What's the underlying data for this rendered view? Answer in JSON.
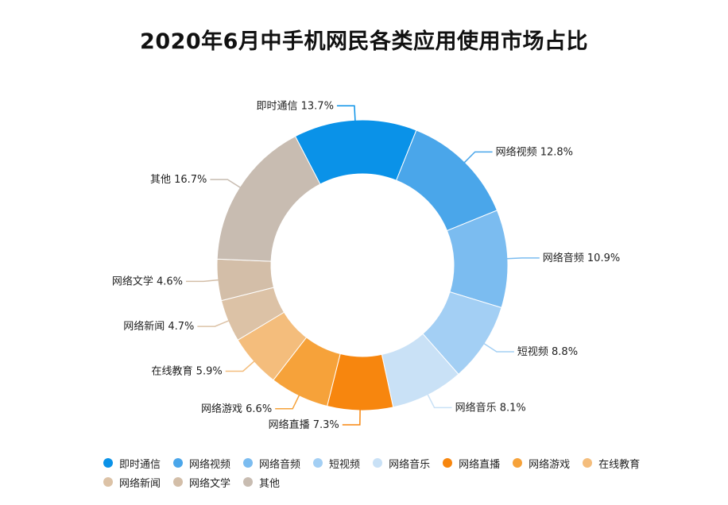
{
  "chart_data": {
    "type": "pie",
    "donut": true,
    "title": "2020年6月中手机网民各类应用使用市场占比",
    "legend_position": "bottom",
    "unit": "%",
    "slices": [
      {
        "label": "即时通信",
        "value": 13.7,
        "color": "#0a92e8"
      },
      {
        "label": "网络视频",
        "value": 12.8,
        "color": "#4aa6ea"
      },
      {
        "label": "网络音频",
        "value": 10.9,
        "color": "#7bbcf0"
      },
      {
        "label": "短视频",
        "value": 8.8,
        "color": "#a3cff4"
      },
      {
        "label": "网络音乐",
        "value": 8.1,
        "color": "#c9e1f6"
      },
      {
        "label": "网络直播",
        "value": 7.3,
        "color": "#f7860e"
      },
      {
        "label": "网络游戏",
        "value": 6.6,
        "color": "#f6a23a"
      },
      {
        "label": "在线教育",
        "value": 5.9,
        "color": "#f4bd7c"
      },
      {
        "label": "网络新闻",
        "value": 4.7,
        "color": "#dcc2a6"
      },
      {
        "label": "网络文学",
        "value": 4.6,
        "color": "#d3bea8"
      },
      {
        "label": "其他",
        "value": 16.7,
        "color": "#c8bcb1"
      }
    ]
  }
}
